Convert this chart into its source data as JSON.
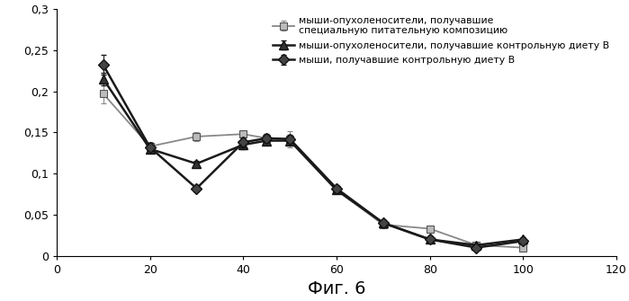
{
  "x": [
    10,
    20,
    30,
    40,
    45,
    50,
    60,
    70,
    80,
    90,
    100
  ],
  "series1_y": [
    0.232,
    0.132,
    0.082,
    0.138,
    0.143,
    0.142,
    0.082,
    0.04,
    0.02,
    0.01,
    0.018
  ],
  "series1_yerr": [
    0.012,
    0.005,
    0.004,
    0.006,
    0.005,
    0.005,
    0.004,
    0.003,
    0.003,
    0.002,
    0.003
  ],
  "series2_y": [
    0.215,
    0.13,
    0.112,
    0.135,
    0.14,
    0.14,
    0.08,
    0.04,
    0.02,
    0.013,
    0.02
  ],
  "series2_yerr": [
    0.008,
    0.004,
    0.004,
    0.005,
    0.005,
    0.004,
    0.003,
    0.003,
    0.002,
    0.002,
    0.003
  ],
  "series3_y": [
    0.197,
    0.133,
    0.145,
    0.148,
    0.143,
    0.142,
    0.08,
    0.038,
    0.033,
    0.013,
    0.01
  ],
  "series3_yerr": [
    0.012,
    0.005,
    0.005,
    0.005,
    0.005,
    0.01,
    0.004,
    0.003,
    0.003,
    0.002,
    0.002
  ],
  "series1_label": "мыши, получавшие контрольную диету B",
  "series2_label": "мыши-опухоленосители, получавшие контрольную диету B",
  "series3_label": "мыши-опухоленосители, получавшие\nспециальную питательную композицию",
  "xlabel": "Фиг. 6",
  "color1": "#1a1a1a",
  "color2": "#1a1a1a",
  "color3": "#888888",
  "ylim": [
    0,
    0.3
  ],
  "xlim": [
    0,
    120
  ],
  "yticks": [
    0,
    0.05,
    0.1,
    0.15,
    0.2,
    0.25,
    0.3
  ],
  "xticks": [
    0,
    20,
    40,
    60,
    80,
    100,
    120
  ],
  "yticklabels": [
    "0",
    "0,05",
    "0,1",
    "0,15",
    "0,2",
    "0,25",
    "0,3"
  ],
  "figsize": [
    6.99,
    3.35
  ],
  "dpi": 100,
  "legend_fontsize": 7.8,
  "tick_fontsize": 9,
  "xlabel_fontsize": 14
}
